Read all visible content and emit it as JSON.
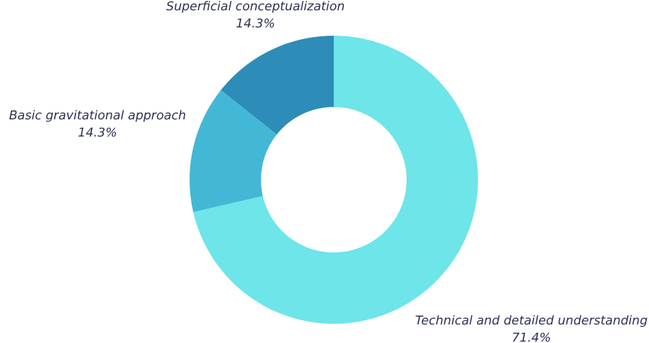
{
  "chart_data": {
    "type": "pie",
    "donut": true,
    "title": "",
    "legend": "none",
    "slices": [
      {
        "label": "Technical and detailed understanding",
        "value": 71.4,
        "value_label": "71.4%",
        "color": "#6de5e9"
      },
      {
        "label": "Basic gravitational approach",
        "value": 14.3,
        "value_label": "14.3%",
        "color": "#43b8d6"
      },
      {
        "label": "Superficial conceptualization",
        "value": 14.3,
        "value_label": "14.3%",
        "color": "#2e8cb8"
      }
    ]
  }
}
